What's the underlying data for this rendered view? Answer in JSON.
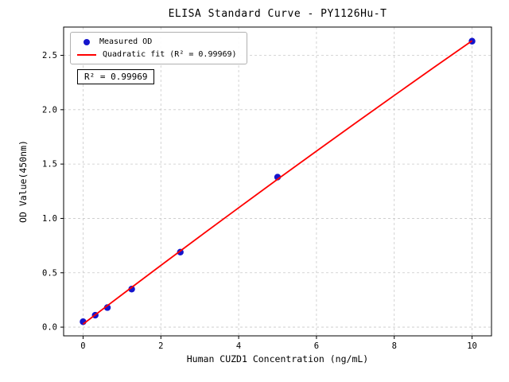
{
  "chart_data": {
    "type": "scatter",
    "title": "ELISA Standard Curve - PY1126Hu-T",
    "xlabel": "Human CUZD1 Concentration (ng/mL)",
    "ylabel": "OD Value(450nm)",
    "xlim": [
      -0.5,
      10.5
    ],
    "ylim": [
      -0.08,
      2.76
    ],
    "x_ticks": [
      0,
      2,
      4,
      6,
      8,
      10
    ],
    "y_ticks": [
      0.0,
      0.5,
      1.0,
      1.5,
      2.0,
      2.5
    ],
    "grid": true,
    "grid_style": "dashed",
    "legend_position": "upper-left",
    "annotation": "R² = 0.99969",
    "series": [
      {
        "name": "Measured OD",
        "type": "scatter",
        "color": "#1515cc",
        "x": [
          0,
          0.3125,
          0.625,
          1.25,
          2.5,
          5,
          10
        ],
        "y": [
          0.05,
          0.11,
          0.18,
          0.35,
          0.69,
          1.38,
          2.63
        ]
      },
      {
        "name": "Quadratic fit (R² = 0.99969)",
        "type": "line",
        "color": "#ff0000",
        "x": [
          0,
          1,
          2,
          3,
          4,
          5,
          6,
          7,
          8,
          9,
          10
        ],
        "y": [
          0.028,
          0.299,
          0.568,
          0.834,
          1.098,
          1.36,
          1.619,
          1.876,
          2.131,
          2.384,
          2.634
        ]
      }
    ]
  }
}
